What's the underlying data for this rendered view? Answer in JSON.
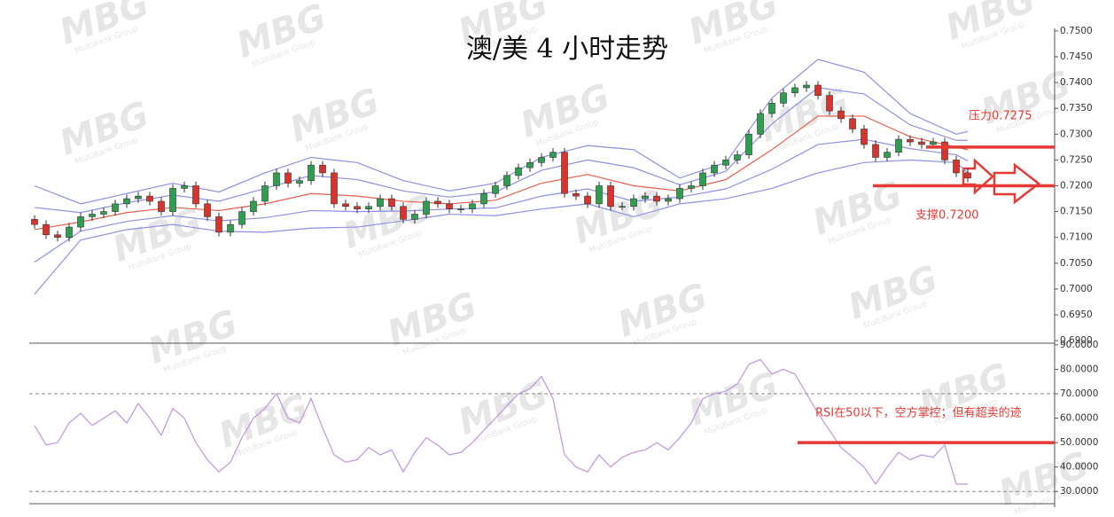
{
  "watermark": {
    "logo": "MBG",
    "sub": "MultiBank Group"
  },
  "chart_data": [
    {
      "type": "candlestick",
      "title": "澳/美 4 小时走势",
      "up_color": "#2e9e4f",
      "down_color": "#d9342b",
      "wick_color": "#333333",
      "open": [
        0.7135,
        0.7125,
        0.7105,
        0.71,
        0.712,
        0.714,
        0.7145,
        0.715,
        0.7165,
        0.7175,
        0.718,
        0.717,
        0.715,
        0.7195,
        0.72,
        0.7165,
        0.714,
        0.711,
        0.7125,
        0.715,
        0.717,
        0.72,
        0.7225,
        0.7205,
        0.721,
        0.724,
        0.7225,
        0.7165,
        0.716,
        0.7155,
        0.716,
        0.7175,
        0.716,
        0.7135,
        0.7145,
        0.717,
        0.7165,
        0.7155,
        0.7155,
        0.7165,
        0.7185,
        0.72,
        0.722,
        0.7235,
        0.7245,
        0.7255,
        0.7265,
        0.7185,
        0.718,
        0.7165,
        0.72,
        0.716,
        0.716,
        0.7175,
        0.718,
        0.717,
        0.7175,
        0.7195,
        0.72,
        0.7225,
        0.724,
        0.725,
        0.726,
        0.73,
        0.734,
        0.736,
        0.738,
        0.739,
        0.7395,
        0.7375,
        0.7345,
        0.733,
        0.731,
        0.728,
        0.7255,
        0.7265,
        0.729,
        0.7285,
        0.728,
        0.7285,
        0.725,
        0.7225
      ],
      "high": [
        0.7143,
        0.7133,
        0.7113,
        0.7128,
        0.7148,
        0.7153,
        0.7158,
        0.7173,
        0.7183,
        0.7188,
        0.7188,
        0.7178,
        0.7203,
        0.7208,
        0.7208,
        0.7173,
        0.7148,
        0.7133,
        0.7158,
        0.7178,
        0.7208,
        0.7233,
        0.7233,
        0.7218,
        0.7248,
        0.7248,
        0.7233,
        0.7173,
        0.7168,
        0.7168,
        0.7183,
        0.7183,
        0.7168,
        0.7153,
        0.7178,
        0.7178,
        0.7173,
        0.7163,
        0.7173,
        0.7193,
        0.7208,
        0.7228,
        0.7243,
        0.7253,
        0.7263,
        0.7273,
        0.7273,
        0.7193,
        0.7188,
        0.7208,
        0.7208,
        0.7168,
        0.7183,
        0.7188,
        0.7188,
        0.7183,
        0.7203,
        0.7208,
        0.7233,
        0.7248,
        0.7258,
        0.7268,
        0.7308,
        0.7348,
        0.7368,
        0.7388,
        0.7398,
        0.7403,
        0.7403,
        0.7383,
        0.7353,
        0.7338,
        0.7318,
        0.7288,
        0.7273,
        0.7298,
        0.7298,
        0.7293,
        0.7293,
        0.7293,
        0.7258,
        0.7233
      ],
      "low": [
        0.7117,
        0.7097,
        0.7092,
        0.7092,
        0.7112,
        0.7132,
        0.7137,
        0.7142,
        0.7157,
        0.7167,
        0.7162,
        0.7142,
        0.7142,
        0.7187,
        0.7157,
        0.7132,
        0.7102,
        0.7102,
        0.7117,
        0.7142,
        0.7162,
        0.7192,
        0.7197,
        0.7197,
        0.7202,
        0.7217,
        0.7157,
        0.7152,
        0.7147,
        0.7147,
        0.7152,
        0.7152,
        0.7127,
        0.7127,
        0.7137,
        0.7157,
        0.7147,
        0.7147,
        0.7147,
        0.7157,
        0.7177,
        0.7192,
        0.7212,
        0.7227,
        0.7237,
        0.7247,
        0.7177,
        0.7172,
        0.7157,
        0.7157,
        0.7152,
        0.7152,
        0.7152,
        0.7167,
        0.7162,
        0.7162,
        0.7167,
        0.7187,
        0.7192,
        0.7217,
        0.7232,
        0.7242,
        0.7252,
        0.7292,
        0.7332,
        0.7352,
        0.7372,
        0.7382,
        0.7367,
        0.7337,
        0.7322,
        0.7302,
        0.7272,
        0.7247,
        0.7247,
        0.7257,
        0.7277,
        0.7272,
        0.7272,
        0.7242,
        0.7217,
        0.7207
      ],
      "close": [
        0.7125,
        0.7105,
        0.71,
        0.712,
        0.714,
        0.7145,
        0.715,
        0.7165,
        0.7175,
        0.718,
        0.717,
        0.715,
        0.7195,
        0.72,
        0.7165,
        0.714,
        0.711,
        0.7125,
        0.715,
        0.717,
        0.72,
        0.7225,
        0.7205,
        0.721,
        0.724,
        0.7225,
        0.7165,
        0.716,
        0.7155,
        0.716,
        0.7175,
        0.716,
        0.7135,
        0.7145,
        0.717,
        0.7165,
        0.7155,
        0.7155,
        0.7165,
        0.7185,
        0.72,
        0.722,
        0.7235,
        0.7245,
        0.7255,
        0.7265,
        0.7185,
        0.718,
        0.7165,
        0.72,
        0.716,
        0.716,
        0.7175,
        0.718,
        0.717,
        0.7175,
        0.7195,
        0.72,
        0.7225,
        0.724,
        0.725,
        0.726,
        0.73,
        0.734,
        0.736,
        0.738,
        0.739,
        0.7395,
        0.7375,
        0.7345,
        0.733,
        0.731,
        0.728,
        0.7255,
        0.7265,
        0.729,
        0.7285,
        0.728,
        0.7285,
        0.725,
        0.7225,
        0.7215
      ],
      "band_x": [
        0,
        4,
        8,
        12,
        16,
        20,
        24,
        28,
        32,
        36,
        40,
        44,
        48,
        52,
        56,
        60,
        64,
        68,
        72,
        76,
        80,
        81
      ],
      "bands": [
        {
          "color": "#8f8fe8",
          "values": [
            0.72,
            0.7165,
            0.7185,
            0.7205,
            0.7188,
            0.7225,
            0.7255,
            0.7245,
            0.721,
            0.719,
            0.7205,
            0.7255,
            0.7278,
            0.727,
            0.7215,
            0.7245,
            0.737,
            0.7445,
            0.742,
            0.734,
            0.73,
            0.7305
          ]
        },
        {
          "color": "#8f8fe8",
          "values": [
            0.7158,
            0.7148,
            0.7167,
            0.7182,
            0.717,
            0.7195,
            0.722,
            0.7212,
            0.719,
            0.7178,
            0.7188,
            0.723,
            0.725,
            0.7235,
            0.7202,
            0.7228,
            0.732,
            0.739,
            0.7378,
            0.7318,
            0.7288,
            0.7288
          ]
        },
        {
          "color": "#e8604c",
          "values": [
            0.7115,
            0.713,
            0.7148,
            0.7158,
            0.7152,
            0.7165,
            0.7185,
            0.718,
            0.717,
            0.7165,
            0.7172,
            0.7205,
            0.7222,
            0.72,
            0.719,
            0.7212,
            0.727,
            0.7335,
            0.7335,
            0.7295,
            0.7275,
            0.727
          ]
        },
        {
          "color": "#8f8fe8",
          "values": [
            0.7052,
            0.7112,
            0.7131,
            0.7142,
            0.7132,
            0.7138,
            0.7152,
            0.715,
            0.7151,
            0.7155,
            0.7157,
            0.718,
            0.7194,
            0.717,
            0.7178,
            0.7194,
            0.7232,
            0.728,
            0.729,
            0.7272,
            0.726,
            0.7248
          ]
        },
        {
          "color": "#8f8fe8",
          "values": [
            0.699,
            0.7095,
            0.7115,
            0.7125,
            0.7112,
            0.711,
            0.7118,
            0.712,
            0.7132,
            0.7145,
            0.7142,
            0.7155,
            0.7165,
            0.714,
            0.7165,
            0.7175,
            0.7195,
            0.7225,
            0.7245,
            0.725,
            0.7245,
            0.7225
          ]
        }
      ],
      "ylim": [
        0.6895,
        0.7505
      ],
      "yticks": [
        {
          "value": 0.69,
          "label": "0.6900"
        },
        {
          "value": 0.695,
          "label": "0.6950"
        },
        {
          "value": 0.7,
          "label": "0.7000"
        },
        {
          "value": 0.705,
          "label": "0.7050"
        },
        {
          "value": 0.71,
          "label": "0.7100"
        },
        {
          "value": 0.715,
          "label": "0.7150"
        },
        {
          "value": 0.72,
          "label": "0.7200"
        },
        {
          "value": 0.725,
          "label": "0.7250"
        },
        {
          "value": 0.73,
          "label": "0.7300"
        },
        {
          "value": 0.735,
          "label": "0.7350"
        },
        {
          "value": 0.74,
          "label": "0.7400"
        },
        {
          "value": 0.745,
          "label": "0.7450"
        },
        {
          "value": 0.75,
          "label": "0.7500"
        }
      ],
      "levels": [
        {
          "value": 0.7275,
          "label": "压力0.7275",
          "color": "#e53935"
        },
        {
          "value": 0.72,
          "label": "支撑0.7200",
          "color": "#e53935"
        }
      ]
    },
    {
      "type": "line",
      "color": "#c39be0",
      "values": [
        57,
        49,
        50,
        58,
        62,
        57,
        60,
        63,
        58,
        66,
        60,
        53,
        64,
        60,
        50,
        43,
        38,
        42,
        52,
        60,
        64,
        70,
        60,
        58,
        68,
        56,
        45,
        42,
        43,
        48,
        45,
        47,
        38,
        46,
        52,
        49,
        45,
        46,
        50,
        55,
        60,
        65,
        70,
        72,
        77,
        68,
        45,
        40,
        38,
        45,
        40,
        44,
        46,
        47,
        50,
        47,
        52,
        58,
        68,
        70,
        71,
        74,
        82,
        84,
        78,
        80,
        78,
        70,
        62,
        55,
        48,
        44,
        40,
        33,
        40,
        46,
        43,
        45,
        44,
        49,
        33,
        33
      ],
      "ylim": [
        25,
        90.3
      ],
      "yticks": [
        {
          "value": 30,
          "label": "30.0000"
        },
        {
          "value": 40,
          "label": "40.0000"
        },
        {
          "value": 50,
          "label": "50.0000"
        },
        {
          "value": 60,
          "label": "60.0000"
        },
        {
          "value": 70,
          "label": "70.0000"
        },
        {
          "value": 80,
          "label": "80.0000"
        },
        {
          "value": 90,
          "label": "90.0000"
        }
      ],
      "dashed_levels": [
        70,
        30
      ],
      "levels": [
        {
          "value": 50,
          "label": "RSI在50以下，空方掌控；但有超卖的迹",
          "color": "#e53935"
        }
      ]
    }
  ]
}
